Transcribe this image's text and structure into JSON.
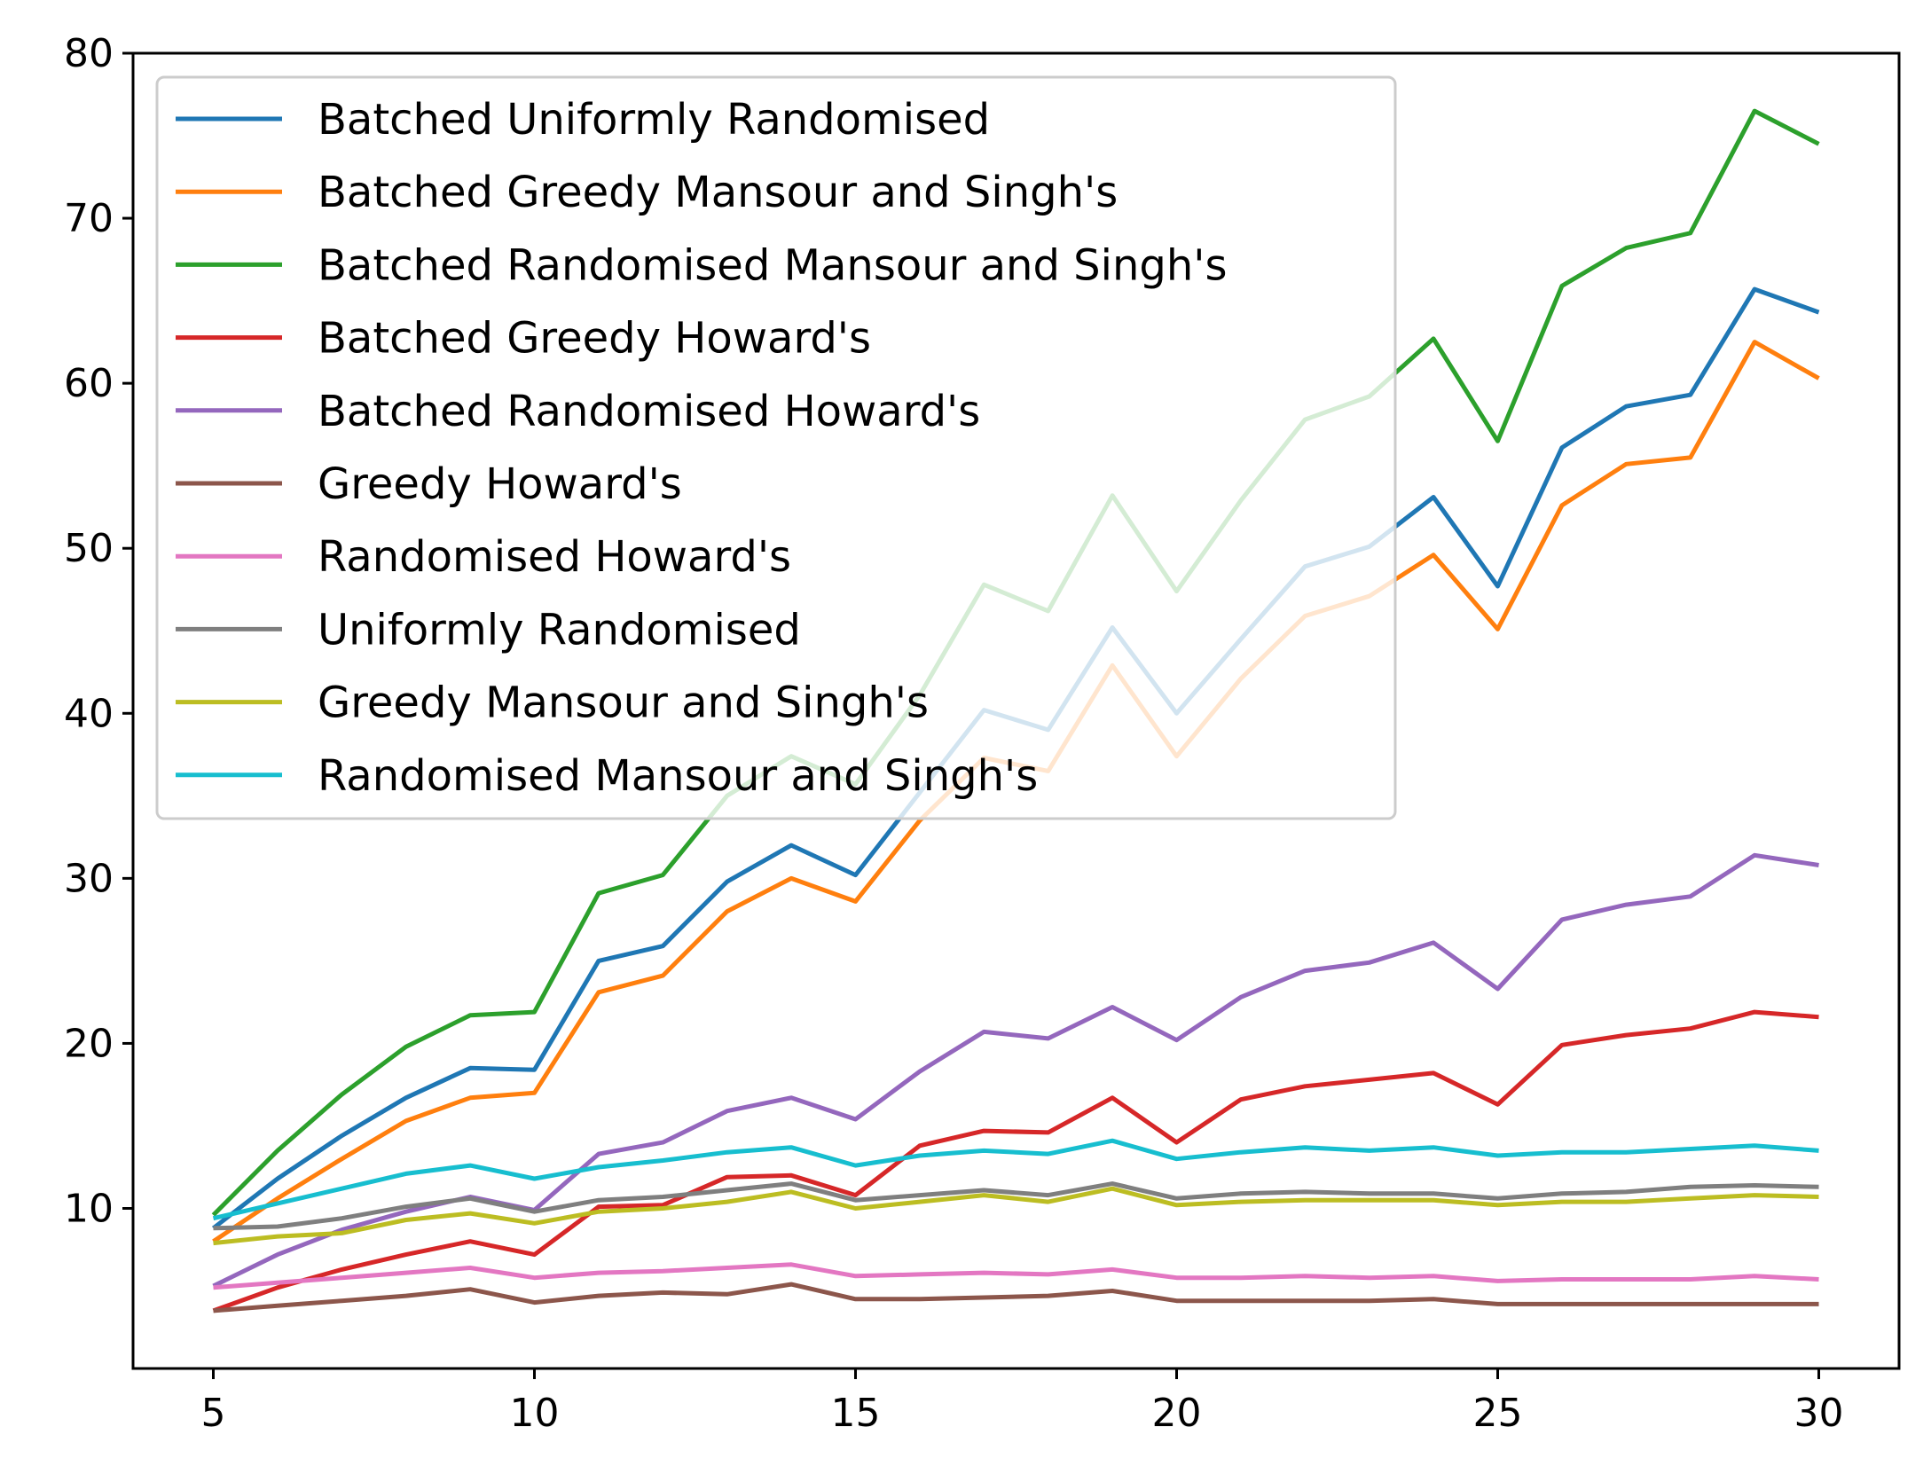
{
  "chart_data": {
    "type": "line",
    "title": "",
    "xlabel": "",
    "ylabel": "",
    "xlim": [
      3.75,
      31.25
    ],
    "ylim": [
      0.3,
      80.0
    ],
    "grid": false,
    "legend_placement": "upper-left",
    "x_ticks": [
      5,
      10,
      15,
      20,
      25,
      30
    ],
    "y_ticks": [
      10,
      20,
      30,
      40,
      50,
      60,
      70,
      80
    ],
    "x": [
      5,
      6,
      7,
      8,
      9,
      10,
      11,
      12,
      13,
      14,
      15,
      16,
      17,
      18,
      19,
      20,
      21,
      22,
      23,
      24,
      25,
      26,
      27,
      28,
      29,
      30
    ],
    "series": [
      {
        "name": "Batched Uniformly Randomised",
        "color": "#1f77b4",
        "values": [
          8.8,
          11.8,
          14.4,
          16.7,
          18.5,
          18.4,
          25.0,
          25.9,
          29.8,
          32.0,
          30.2,
          35.2,
          40.2,
          39.0,
          45.2,
          40.0,
          44.5,
          48.9,
          50.1,
          53.1,
          47.7,
          56.1,
          58.6,
          59.3,
          65.7,
          64.3
        ]
      },
      {
        "name": "Batched Greedy Mansour and Singh's",
        "color": "#ff7f0e",
        "values": [
          8.0,
          10.6,
          13.0,
          15.3,
          16.7,
          17.0,
          23.1,
          24.1,
          28.0,
          30.0,
          28.6,
          33.5,
          37.3,
          36.5,
          42.9,
          37.4,
          42.1,
          45.9,
          47.1,
          49.6,
          45.1,
          52.6,
          55.1,
          55.5,
          62.5,
          60.3
        ]
      },
      {
        "name": "Batched Randomised Mansour and Singh's",
        "color": "#2ca02c",
        "values": [
          9.6,
          13.5,
          16.9,
          19.8,
          21.7,
          21.9,
          29.1,
          30.2,
          35.0,
          37.4,
          35.7,
          41.1,
          47.8,
          46.2,
          53.2,
          47.4,
          52.9,
          57.8,
          59.2,
          62.7,
          56.5,
          65.9,
          68.2,
          69.1,
          76.5,
          74.5
        ]
      },
      {
        "name": "Batched Greedy Howard's",
        "color": "#d62728",
        "values": [
          3.8,
          5.2,
          6.3,
          7.2,
          8.0,
          7.2,
          10.1,
          10.2,
          11.9,
          12.0,
          10.8,
          13.8,
          14.7,
          14.6,
          16.7,
          14.0,
          16.6,
          17.4,
          17.8,
          18.2,
          16.3,
          19.9,
          20.5,
          20.9,
          21.9,
          21.6
        ]
      },
      {
        "name": "Batched Randomised Howard's",
        "color": "#9467bd",
        "values": [
          5.3,
          7.2,
          8.7,
          9.8,
          10.7,
          9.9,
          13.3,
          14.0,
          15.9,
          16.7,
          15.4,
          18.3,
          20.7,
          20.3,
          22.2,
          20.2,
          22.8,
          24.4,
          24.9,
          26.1,
          23.3,
          27.5,
          28.4,
          28.9,
          31.4,
          30.8
        ]
      },
      {
        "name": "Greedy Howard's",
        "color": "#8c564b",
        "values": [
          3.8,
          4.1,
          4.4,
          4.7,
          5.1,
          4.3,
          4.7,
          4.9,
          4.8,
          5.4,
          4.5,
          4.5,
          4.6,
          4.7,
          5.0,
          4.4,
          4.4,
          4.4,
          4.4,
          4.5,
          4.2,
          4.2,
          4.2,
          4.2,
          4.2,
          4.2
        ]
      },
      {
        "name": "Randomised Howard's",
        "color": "#e377c2",
        "values": [
          5.2,
          5.5,
          5.8,
          6.1,
          6.4,
          5.8,
          6.1,
          6.2,
          6.4,
          6.6,
          5.9,
          6.0,
          6.1,
          6.0,
          6.3,
          5.8,
          5.8,
          5.9,
          5.8,
          5.9,
          5.6,
          5.7,
          5.7,
          5.7,
          5.9,
          5.7
        ]
      },
      {
        "name": "Uniformly Randomised",
        "color": "#7f7f7f",
        "values": [
          8.8,
          8.9,
          9.4,
          10.1,
          10.6,
          9.8,
          10.5,
          10.7,
          11.1,
          11.5,
          10.5,
          10.8,
          11.1,
          10.8,
          11.5,
          10.6,
          10.9,
          11.0,
          10.9,
          10.9,
          10.6,
          10.9,
          11.0,
          11.3,
          11.4,
          11.3
        ]
      },
      {
        "name": "Greedy Mansour and Singh's",
        "color": "#bcbd22",
        "values": [
          7.9,
          8.3,
          8.5,
          9.3,
          9.7,
          9.1,
          9.8,
          10.0,
          10.4,
          11.0,
          10.0,
          10.4,
          10.8,
          10.4,
          11.2,
          10.2,
          10.4,
          10.5,
          10.5,
          10.5,
          10.2,
          10.4,
          10.4,
          10.6,
          10.8,
          10.7
        ]
      },
      {
        "name": "Randomised Mansour and Singh's",
        "color": "#17becf",
        "values": [
          9.4,
          10.3,
          11.2,
          12.1,
          12.6,
          11.8,
          12.5,
          12.9,
          13.4,
          13.7,
          12.6,
          13.2,
          13.5,
          13.3,
          14.1,
          13.0,
          13.4,
          13.7,
          13.5,
          13.7,
          13.2,
          13.4,
          13.4,
          13.6,
          13.8,
          13.5
        ]
      }
    ]
  }
}
